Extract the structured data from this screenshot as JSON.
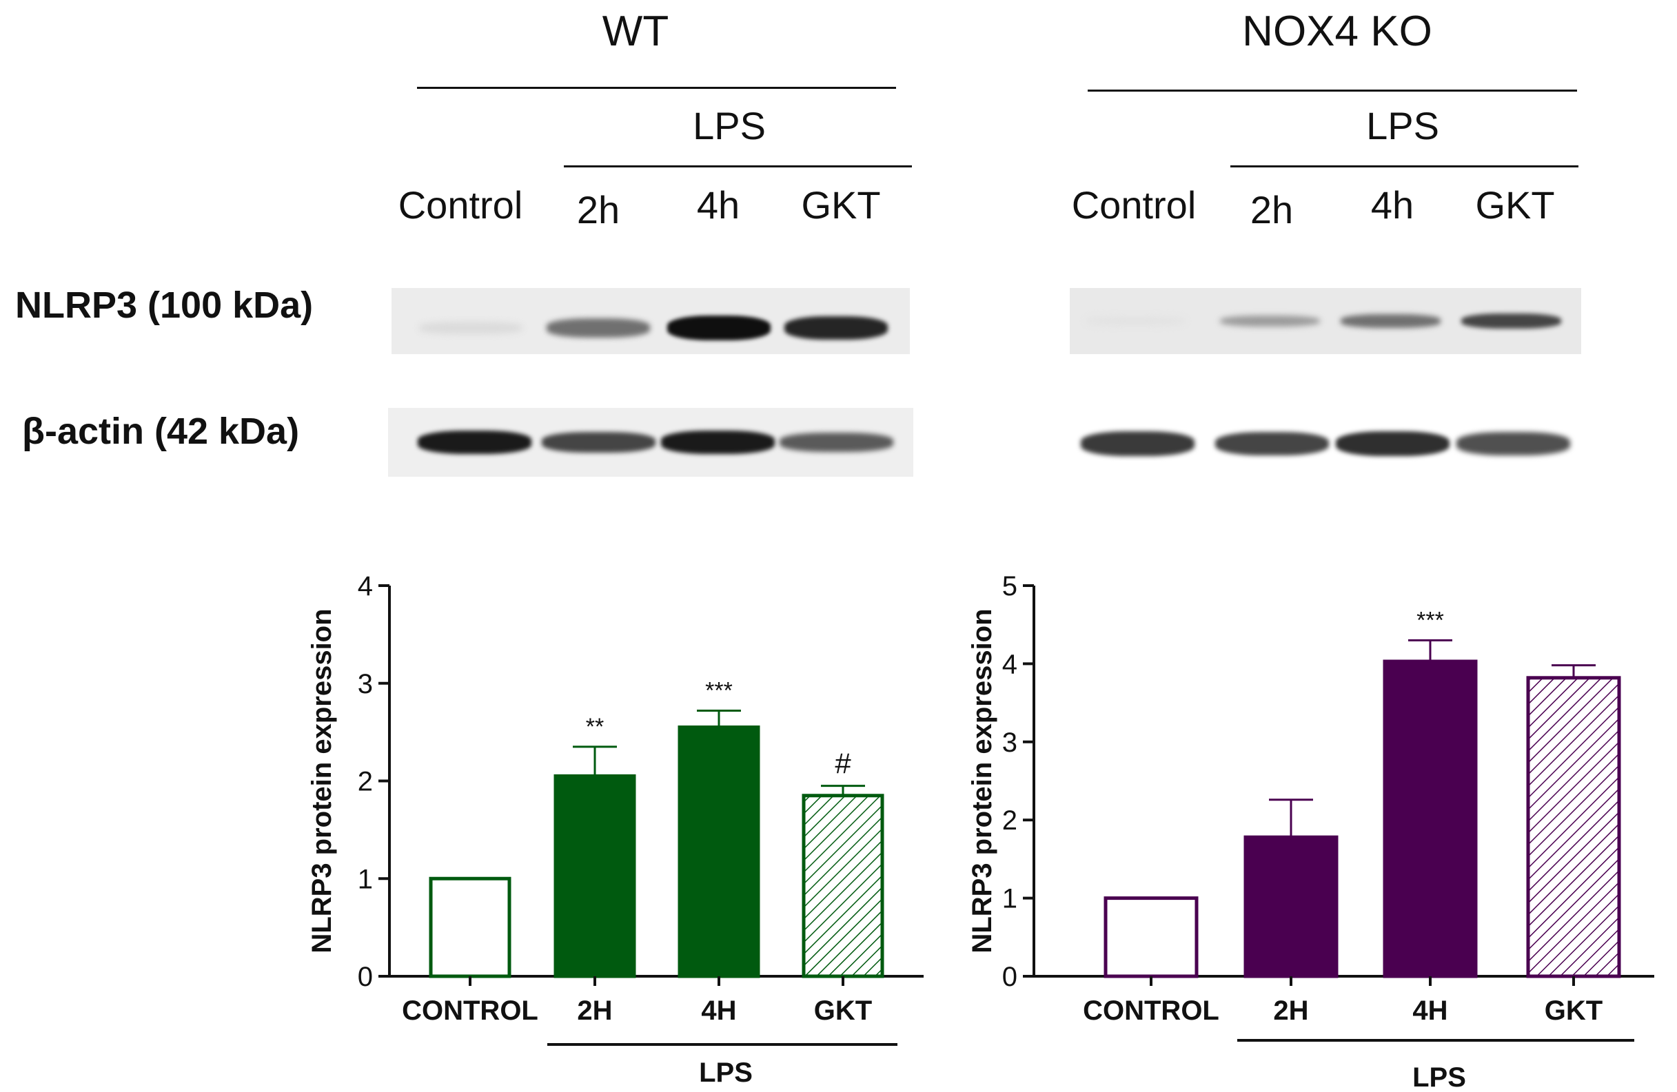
{
  "blots": {
    "row_labels": {
      "nlrp3": "NLRP3 (100 kDa)",
      "actin": "β-actin (42 kDa)"
    },
    "panels": [
      {
        "title": "WT",
        "treatment": "LPS",
        "lanes": [
          "Control",
          "2h",
          "4h",
          "GKT"
        ],
        "nlrp3_band_intensity": [
          0.05,
          0.55,
          1.0,
          0.9
        ],
        "actin_band_intensity": [
          0.95,
          0.75,
          0.95,
          0.65
        ]
      },
      {
        "title": "NOX4 KO",
        "treatment": "LPS",
        "lanes": [
          "Control",
          "2h",
          "4h",
          "GKT"
        ],
        "nlrp3_band_intensity": [
          0.02,
          0.35,
          0.55,
          0.75
        ],
        "actin_band_intensity": [
          0.8,
          0.75,
          0.85,
          0.7
        ]
      }
    ]
  },
  "chart_data": [
    {
      "type": "bar",
      "categories": [
        "CONTROL",
        "2H",
        "4H",
        "GKT"
      ],
      "values": [
        1.0,
        2.05,
        2.55,
        1.85
      ],
      "errors": [
        0,
        0.3,
        0.17,
        0.1
      ],
      "annotations": [
        "",
        "**",
        "***",
        "#"
      ],
      "group_label": "LPS",
      "ylabel": "NLRP3 protein expression",
      "ylim": [
        0,
        4
      ],
      "yticks": [
        0,
        1,
        2,
        3,
        4
      ],
      "color": "#005a0f",
      "fills": [
        "empty",
        "solid",
        "solid",
        "hatched"
      ]
    },
    {
      "type": "bar",
      "categories": [
        "CONTROL",
        "2H",
        "4H",
        "GKT"
      ],
      "values": [
        1.0,
        1.78,
        4.03,
        3.82
      ],
      "errors": [
        0,
        0.48,
        0.27,
        0.16
      ],
      "annotations": [
        "",
        "",
        "***",
        ""
      ],
      "group_label": "LPS",
      "ylabel": "NLRP3 protein expression",
      "ylim": [
        0,
        5
      ],
      "yticks": [
        0,
        1,
        2,
        3,
        4,
        5
      ],
      "color": "#4a0050",
      "fills": [
        "empty",
        "solid",
        "solid",
        "hatched"
      ]
    }
  ]
}
